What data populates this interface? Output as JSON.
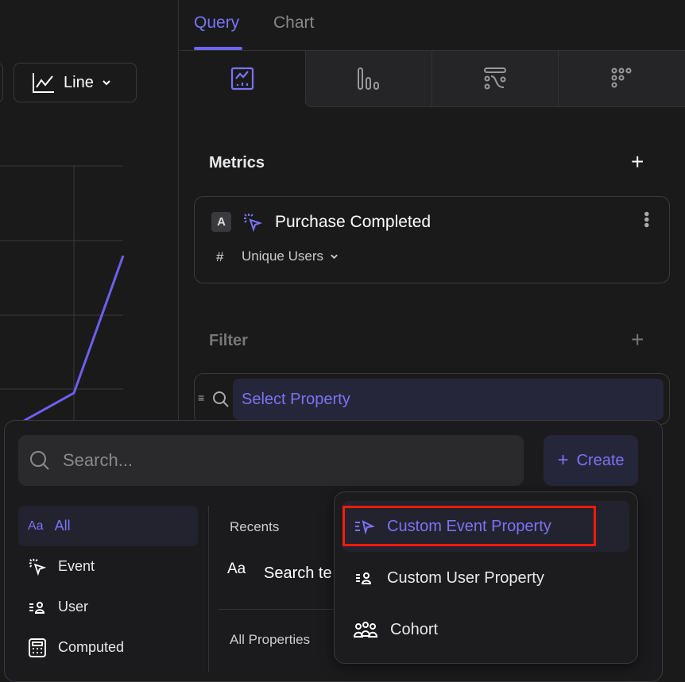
{
  "toolbar": {
    "chart_type_label": "Line"
  },
  "tabs": [
    {
      "label": "Query",
      "active": true
    },
    {
      "label": "Chart",
      "active": false
    }
  ],
  "view_tabs": [
    "line-chart-icon",
    "bar-chart-icon",
    "flow-icon",
    "retention-icon"
  ],
  "metrics": {
    "title": "Metrics",
    "items": [
      {
        "badge": "A",
        "event": "Purchase Completed",
        "measure_icon": "#",
        "measure": "Unique Users"
      }
    ]
  },
  "filter": {
    "title": "Filter",
    "select_label": "Select Property"
  },
  "popup": {
    "search_placeholder": "Search...",
    "create_label": "Create",
    "nav": [
      {
        "icon": "Aa",
        "label": "All",
        "active": true
      },
      {
        "label": "Event"
      },
      {
        "label": "User"
      },
      {
        "label": "Computed"
      }
    ],
    "recents_label": "Recents",
    "recent_item": "Search te",
    "all_properties_label": "All Properties",
    "create_menu": [
      {
        "label": "Custom Event Property",
        "highlighted": true
      },
      {
        "label": "Custom User Property"
      },
      {
        "label": "Cohort"
      }
    ]
  },
  "colors": {
    "accent": "#7b73f5",
    "highlight_box": "#ff1a0a",
    "background": "#1a1a1b"
  }
}
